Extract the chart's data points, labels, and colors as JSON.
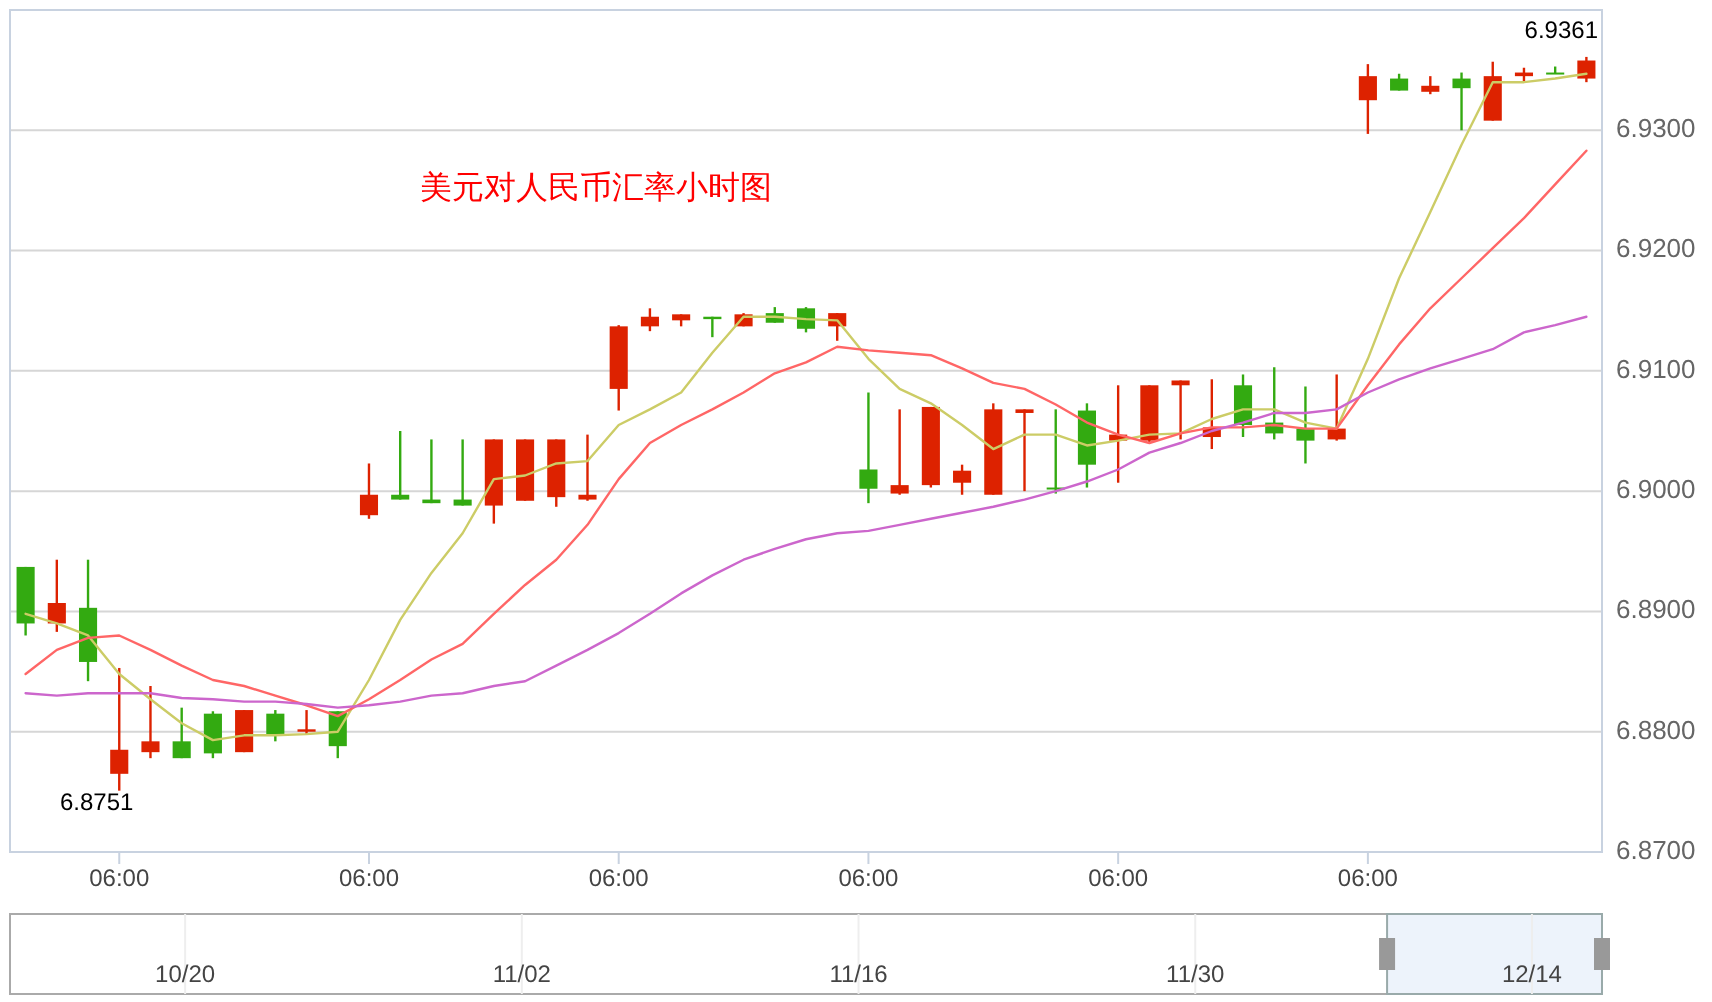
{
  "chart_data": [
    {
      "type": "candlestick",
      "title": "美元对人民币汇率小时图",
      "categories": [
        null,
        null,
        null,
        "06:00",
        null,
        null,
        null,
        null,
        null,
        null,
        null,
        "06:00",
        null,
        null,
        null,
        null,
        null,
        null,
        null,
        "06:00",
        null,
        null,
        null,
        null,
        null,
        null,
        null,
        "06:00",
        null,
        null,
        null,
        null,
        null,
        null,
        null,
        "06:00",
        null,
        null,
        null,
        null,
        null,
        null,
        null,
        "06:00",
        null,
        null,
        null,
        null,
        null,
        null,
        null
      ],
      "ohlc": [
        [
          6.8937,
          6.8937,
          6.888,
          6.889
        ],
        [
          6.889,
          6.8943,
          6.8883,
          6.8907
        ],
        [
          6.8903,
          6.8943,
          6.8842,
          6.8858
        ],
        [
          6.8765,
          6.8853,
          6.8751,
          6.8785
        ],
        [
          6.8783,
          6.8838,
          6.8778,
          6.8792
        ],
        [
          6.8792,
          6.882,
          6.8778,
          6.8778
        ],
        [
          6.8815,
          6.8817,
          6.8778,
          6.8782
        ],
        [
          6.8783,
          6.8818,
          6.8783,
          6.8818
        ],
        [
          6.8815,
          6.8818,
          6.8792,
          6.8798
        ],
        [
          6.88,
          6.8818,
          6.8798,
          6.8802
        ],
        [
          6.8817,
          6.8817,
          6.8778,
          6.8788
        ],
        [
          6.898,
          6.9023,
          6.8977,
          6.8997
        ],
        [
          6.8997,
          6.905,
          6.8993,
          6.8993
        ],
        [
          6.8993,
          6.9043,
          6.899,
          6.899
        ],
        [
          6.8993,
          6.9043,
          6.8988,
          6.8988
        ],
        [
          6.8988,
          6.9043,
          6.8973,
          6.9043
        ],
        [
          6.8992,
          6.9043,
          6.8992,
          6.9043
        ],
        [
          6.8995,
          6.9043,
          6.8987,
          6.9043
        ],
        [
          6.8993,
          6.9047,
          6.8992,
          6.8997
        ],
        [
          6.9085,
          6.9138,
          6.9067,
          6.9137
        ],
        [
          6.9137,
          6.9152,
          6.9133,
          6.9145
        ],
        [
          6.9142,
          6.9147,
          6.9137,
          6.9147
        ],
        [
          6.9145,
          6.9145,
          6.9128,
          6.9143
        ],
        [
          6.9137,
          6.9148,
          6.9137,
          6.9147
        ],
        [
          6.9148,
          6.9153,
          6.914,
          6.914
        ],
        [
          6.9152,
          6.9153,
          6.9132,
          6.9135
        ],
        [
          6.9137,
          6.9148,
          6.9125,
          6.9148
        ],
        [
          6.9018,
          6.9082,
          6.899,
          6.9002
        ],
        [
          6.8998,
          6.9068,
          6.8997,
          6.9005
        ],
        [
          6.9005,
          6.907,
          6.9003,
          6.907
        ],
        [
          6.9007,
          6.9022,
          6.8997,
          6.9017
        ],
        [
          6.8997,
          6.9073,
          6.8997,
          6.9068
        ],
        [
          6.9065,
          6.9068,
          6.9,
          6.9068
        ],
        [
          6.9003,
          6.9068,
          6.8998,
          6.9002
        ],
        [
          6.9067,
          6.9073,
          6.9003,
          6.9022
        ],
        [
          6.9042,
          6.9088,
          6.9007,
          6.9047
        ],
        [
          6.9042,
          6.9088,
          6.904,
          6.9088
        ],
        [
          6.9088,
          6.9092,
          6.9043,
          6.9092
        ],
        [
          6.9045,
          6.9093,
          6.9035,
          6.9053
        ],
        [
          6.9088,
          6.9097,
          6.9045,
          6.9055
        ],
        [
          6.9057,
          6.9103,
          6.9043,
          6.9048
        ],
        [
          6.9052,
          6.9087,
          6.9023,
          6.9042
        ],
        [
          6.9043,
          6.9097,
          6.9042,
          6.9052
        ],
        [
          6.9325,
          6.9355,
          6.9297,
          6.9345
        ],
        [
          6.9343,
          6.9347,
          6.9333,
          6.9333
        ],
        [
          6.9332,
          6.9345,
          6.933,
          6.9337
        ],
        [
          6.9343,
          6.9348,
          6.93,
          6.9335
        ],
        [
          6.9308,
          6.9357,
          6.9308,
          6.9345
        ],
        [
          6.9345,
          6.9352,
          6.934,
          6.9348
        ],
        [
          6.9348,
          6.9353,
          6.9347,
          6.9347
        ],
        [
          6.9343,
          6.9361,
          6.934,
          6.9358
        ]
      ],
      "colors": [
        "#33aa11",
        "#dd2200",
        "#33aa11",
        "#dd2200",
        "#dd2200",
        "#33aa11",
        "#33aa11",
        "#dd2200",
        "#33aa11",
        "#dd2200",
        "#33aa11",
        "#dd2200",
        "#33aa11",
        "#33aa11",
        "#33aa11",
        "#dd2200",
        "#dd2200",
        "#dd2200",
        "#dd2200",
        "#dd2200",
        "#dd2200",
        "#dd2200",
        "#33aa11",
        "#dd2200",
        "#33aa11",
        "#33aa11",
        "#dd2200",
        "#33aa11",
        "#dd2200",
        "#dd2200",
        "#dd2200",
        "#dd2200",
        "#dd2200",
        "#33aa11",
        "#33aa11",
        "#dd2200",
        "#dd2200",
        "#dd2200",
        "#dd2200",
        "#33aa11",
        "#33aa11",
        "#33aa11",
        "#dd2200",
        "#dd2200",
        "#33aa11",
        "#dd2200",
        "#33aa11",
        "#dd2200",
        "#dd2200",
        "#33aa11",
        "#dd2200"
      ],
      "series": [
        {
          "type": "line",
          "color": "#cccc66",
          "values": [
            6.8898,
            6.889,
            6.888,
            6.8848,
            6.8827,
            6.8807,
            6.8793,
            6.8797,
            6.8797,
            6.8798,
            6.88,
            6.8843,
            6.8893,
            6.8932,
            6.8965,
            6.901,
            6.9013,
            6.9023,
            6.9025,
            6.9055,
            6.9068,
            6.9082,
            6.9115,
            6.9145,
            6.9145,
            6.9143,
            6.9142,
            6.911,
            6.9085,
            6.9073,
            6.9055,
            6.9035,
            6.9047,
            6.9047,
            6.9038,
            6.9042,
            6.9047,
            6.9048,
            6.906,
            6.9068,
            6.9068,
            6.9057,
            6.9052,
            6.911,
            6.9177,
            6.9232,
            6.9288,
            6.934,
            6.934,
            6.9343,
            6.9347
          ]
        },
        {
          "type": "line",
          "color": "#ff6666",
          "values": [
            6.8848,
            6.8868,
            6.8878,
            6.888,
            6.8868,
            6.8855,
            6.8843,
            6.8838,
            6.883,
            6.8822,
            6.8813,
            6.8827,
            6.8843,
            6.886,
            6.8873,
            6.8898,
            6.8922,
            6.8943,
            6.8972,
            6.901,
            6.904,
            6.9055,
            6.9068,
            6.9082,
            6.9098,
            6.9107,
            6.912,
            6.9117,
            6.9115,
            6.9113,
            6.9102,
            6.909,
            6.9085,
            6.9072,
            6.9057,
            6.9047,
            6.904,
            6.9048,
            6.9053,
            6.9053,
            6.9055,
            6.9052,
            6.9052,
            6.9088,
            6.9122,
            6.9152,
            6.9177,
            6.9202,
            6.9227,
            6.9255,
            6.9283
          ]
        },
        {
          "type": "line",
          "color": "#cc66cc",
          "values": [
            6.8832,
            6.883,
            6.8832,
            6.8832,
            6.8832,
            6.8828,
            6.8827,
            6.8825,
            6.8825,
            6.8823,
            6.882,
            6.8822,
            6.8825,
            6.883,
            6.8832,
            6.8838,
            6.8842,
            6.8855,
            6.8868,
            6.8882,
            6.8898,
            6.8915,
            6.893,
            6.8943,
            6.8952,
            6.896,
            6.8965,
            6.8967,
            6.8972,
            6.8977,
            6.8982,
            6.8987,
            6.8993,
            6.9,
            6.9008,
            6.9018,
            6.9032,
            6.904,
            6.905,
            6.9057,
            6.9065,
            6.9065,
            6.9068,
            6.9082,
            6.9093,
            6.9102,
            6.911,
            6.9118,
            6.9132,
            6.9138,
            6.9145
          ]
        }
      ],
      "ylim": [
        6.87,
        6.94
      ],
      "yticks": [
        {
          "value": 6.87,
          "label": "6.8700"
        },
        {
          "value": 6.88,
          "label": "6.8800"
        },
        {
          "value": 6.89,
          "label": "6.8900"
        },
        {
          "value": 6.9,
          "label": "6.9000"
        },
        {
          "value": 6.91,
          "label": "6.9100"
        },
        {
          "value": 6.92,
          "label": "6.9200"
        },
        {
          "value": 6.93,
          "label": "6.9300"
        }
      ],
      "grid": "y",
      "annotations": [
        "6.9361",
        "6.8751"
      ]
    },
    {
      "type": "other",
      "categories": [
        "10/20",
        "11/02",
        "11/16",
        "11/30",
        "12/14"
      ]
    }
  ]
}
